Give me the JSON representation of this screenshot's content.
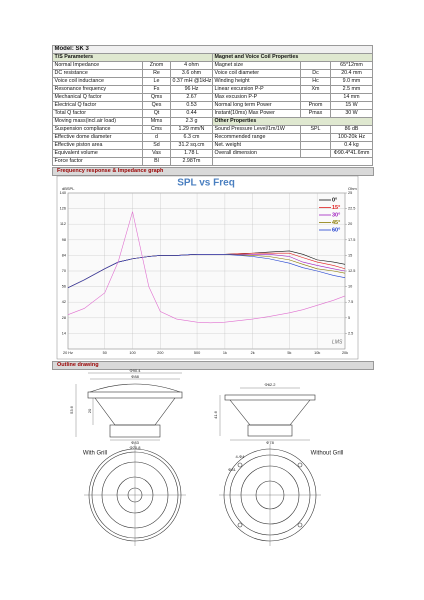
{
  "model": "Model: SK 3",
  "table": {
    "headers": [
      "T/S Parameters",
      "Magnet and Voice Coil Properties"
    ],
    "rows": [
      [
        "Normal Impedance",
        "Znom",
        "4 ohm",
        "Magnet size",
        null,
        "65*12mm"
      ],
      [
        "DC resistance",
        "Re",
        "3.6 ohm",
        "Voice coil diameter",
        "Dc",
        "20.4 mm"
      ],
      [
        "Voice coil inductance",
        "Le",
        "0.37 mH @1kHz",
        "Winding height",
        "Hc",
        "9.0 mm"
      ],
      [
        "Resonance frequency",
        "Fs",
        "96 Hz",
        "Linear excursion P-P",
        "Xm",
        "2.5 mm"
      ],
      [
        "Mechanical Q factor",
        "Qms",
        "2.67",
        "Max excusion P-P",
        null,
        "14 mm"
      ],
      [
        "Electrical Q factor",
        "Qes",
        "0.53",
        "Normal long term Power",
        "Pnom",
        "15 W"
      ],
      [
        "Total Q factor",
        "Qt",
        "0.44",
        "Instant(10ms) Max Power",
        "Pmax",
        "30 W"
      ],
      [
        "Moving mass(incl.air load)",
        "Mms",
        "2.3 g",
        "Other Properties"
      ],
      [
        "Suspension compliance",
        "Cms",
        "1.29 mm/N",
        "Sound Pressure Level/1m/1W",
        "SPL",
        "86 dB"
      ],
      [
        "Effective dome diameter",
        "d",
        "6.3 cm",
        "Recommended range",
        null,
        "100-20k Hz"
      ],
      [
        "Effective piston area",
        "Sd",
        "31.2 sq.cm",
        "Net. weight",
        null,
        "0.4 kg"
      ],
      [
        "Equivalent volume",
        "Vas",
        "1.78 L",
        "Overall dimension",
        null,
        "Φ90.4*41.6mm"
      ],
      [
        "Force factor",
        "Bl",
        "2.98Tm"
      ]
    ]
  },
  "sections": [
    "Frequency response & Impedance graph",
    "Outline drawing"
  ],
  "chart_data": {
    "type": "line",
    "title": "SPL vs Freq",
    "ylabel": "dBSPL",
    "y2label": "Ohm",
    "watermark": "LMS",
    "log_x": true,
    "grid": true,
    "legend": "right",
    "x": [
      20,
      30,
      50,
      70,
      100,
      150,
      200,
      300,
      500,
      700,
      1000,
      2000,
      3000,
      5000,
      7000,
      10000,
      15000,
      20000
    ],
    "xlim": [
      20,
      20000
    ],
    "xticks": [
      {
        "value": 20,
        "label": "20 Hz"
      },
      50,
      100,
      200,
      500,
      {
        "value": 1000,
        "label": "1k"
      },
      {
        "value": 2000,
        "label": "2k"
      },
      {
        "value": 5000,
        "label": "5k"
      },
      {
        "value": 10000,
        "label": "10k"
      },
      {
        "value": 20000,
        "label": "20k"
      }
    ],
    "ylim": [
      0,
      140
    ],
    "yticks": [
      14,
      28,
      42,
      56,
      70,
      84,
      98,
      112,
      126,
      140
    ],
    "y2lim": [
      0,
      25
    ],
    "y2ticks": [
      2.5,
      5,
      7.5,
      10,
      12.5,
      15,
      17.5,
      20,
      22.5,
      25
    ],
    "series": [
      {
        "name": "0°",
        "color": "#111111",
        "values": [
          55,
          62,
          72,
          78,
          81,
          83,
          84,
          84,
          85,
          85,
          85,
          86,
          87,
          88,
          85,
          80,
          78,
          76
        ]
      },
      {
        "name": "15°",
        "color": "#e02020",
        "values": [
          55,
          62,
          72,
          78,
          81,
          83,
          84,
          84,
          85,
          85,
          85,
          86,
          86,
          86,
          82,
          78,
          75,
          72
        ]
      },
      {
        "name": "30°",
        "color": "#a020c0",
        "values": [
          55,
          62,
          72,
          78,
          81,
          83,
          84,
          84,
          85,
          85,
          85,
          85,
          85,
          83,
          78,
          75,
          72,
          70
        ]
      },
      {
        "name": "45°",
        "color": "#8a7a00",
        "values": [
          55,
          62,
          72,
          78,
          81,
          83,
          84,
          84,
          85,
          85,
          85,
          84,
          83,
          80,
          76,
          72,
          70,
          68
        ]
      },
      {
        "name": "60°",
        "color": "#2040d0",
        "values": [
          55,
          62,
          72,
          78,
          81,
          83,
          84,
          84,
          85,
          85,
          85,
          83,
          81,
          77,
          73,
          70,
          66,
          64
        ]
      },
      {
        "color": "#e070d0",
        "axis": "y2",
        "values": [
          5.5,
          6.5,
          9,
          14,
          22,
          10,
          6,
          4.8,
          4.3,
          4.2,
          4.3,
          4.8,
          5.2,
          5.8,
          6.3,
          7,
          7.8,
          8.5
        ]
      }
    ]
  },
  "drawing": {
    "captions": [
      "With Grill",
      "Without Grill"
    ],
    "dimensions": [
      "Φ90.4",
      "Φ88",
      "53.6",
      "20",
      "Φ83",
      "Φ70.8",
      "Φ62.2",
      "41.6",
      "Φ78",
      "4-Φ4",
      "Φ81"
    ]
  }
}
